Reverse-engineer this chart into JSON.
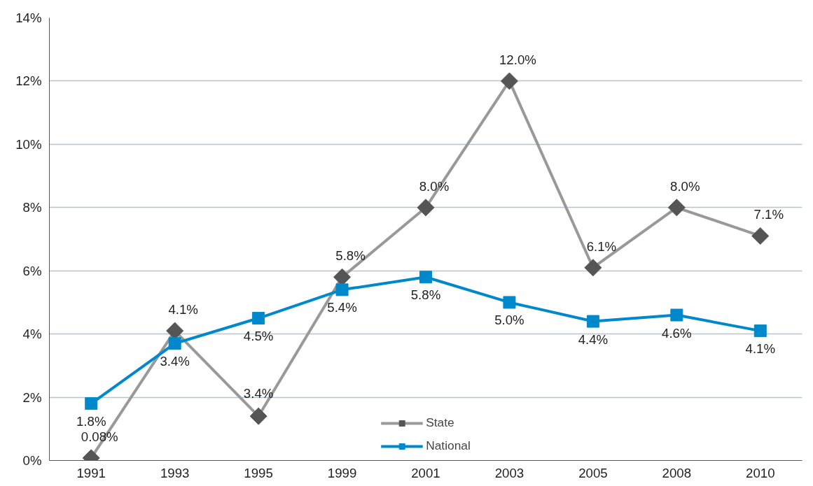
{
  "chart_data": {
    "type": "line",
    "categories": [
      "1991",
      "1993",
      "1995",
      "1999",
      "2001",
      "2003",
      "2005",
      "2008",
      "2010"
    ],
    "series": [
      {
        "name": "State",
        "color": "#555555",
        "marker": "diamond",
        "values": [
          0.08,
          4.1,
          1.4,
          5.8,
          8.0,
          12.0,
          6.1,
          8.0,
          7.1
        ],
        "value_labels": [
          "0.08%",
          "4.1%",
          null,
          "5.8%",
          "8.0%",
          "12.0%",
          "6.1%",
          "8.0%",
          "7.1%"
        ]
      },
      {
        "name": "National",
        "color": "#0088cc",
        "marker": "square",
        "values": [
          1.8,
          3.7,
          4.5,
          5.4,
          5.8,
          5.0,
          4.4,
          4.6,
          4.1
        ],
        "value_labels": [
          "1.8%",
          null,
          "4.5%",
          "5.4%",
          "5.8%",
          "5.0%",
          "4.4%",
          "4.6%",
          "4.1%"
        ]
      }
    ],
    "annotations": [
      {
        "text": "3.4%",
        "x": "1993",
        "y": 3.7
      },
      {
        "text": "3.4%",
        "x": "1995",
        "y": 1.4
      }
    ],
    "ylim": [
      0,
      14
    ],
    "yticks": [
      {
        "value": 0,
        "label": "0%"
      },
      {
        "value": 2,
        "label": "2%"
      },
      {
        "value": 4,
        "label": "4%"
      },
      {
        "value": 6,
        "label": "6%"
      },
      {
        "value": 8,
        "label": "8%"
      },
      {
        "value": 10,
        "label": "10%"
      },
      {
        "value": 12,
        "label": "12%"
      },
      {
        "value": 14,
        "label": "14%"
      }
    ],
    "grid": "y",
    "legend": "bottom",
    "line_style": "solid"
  }
}
